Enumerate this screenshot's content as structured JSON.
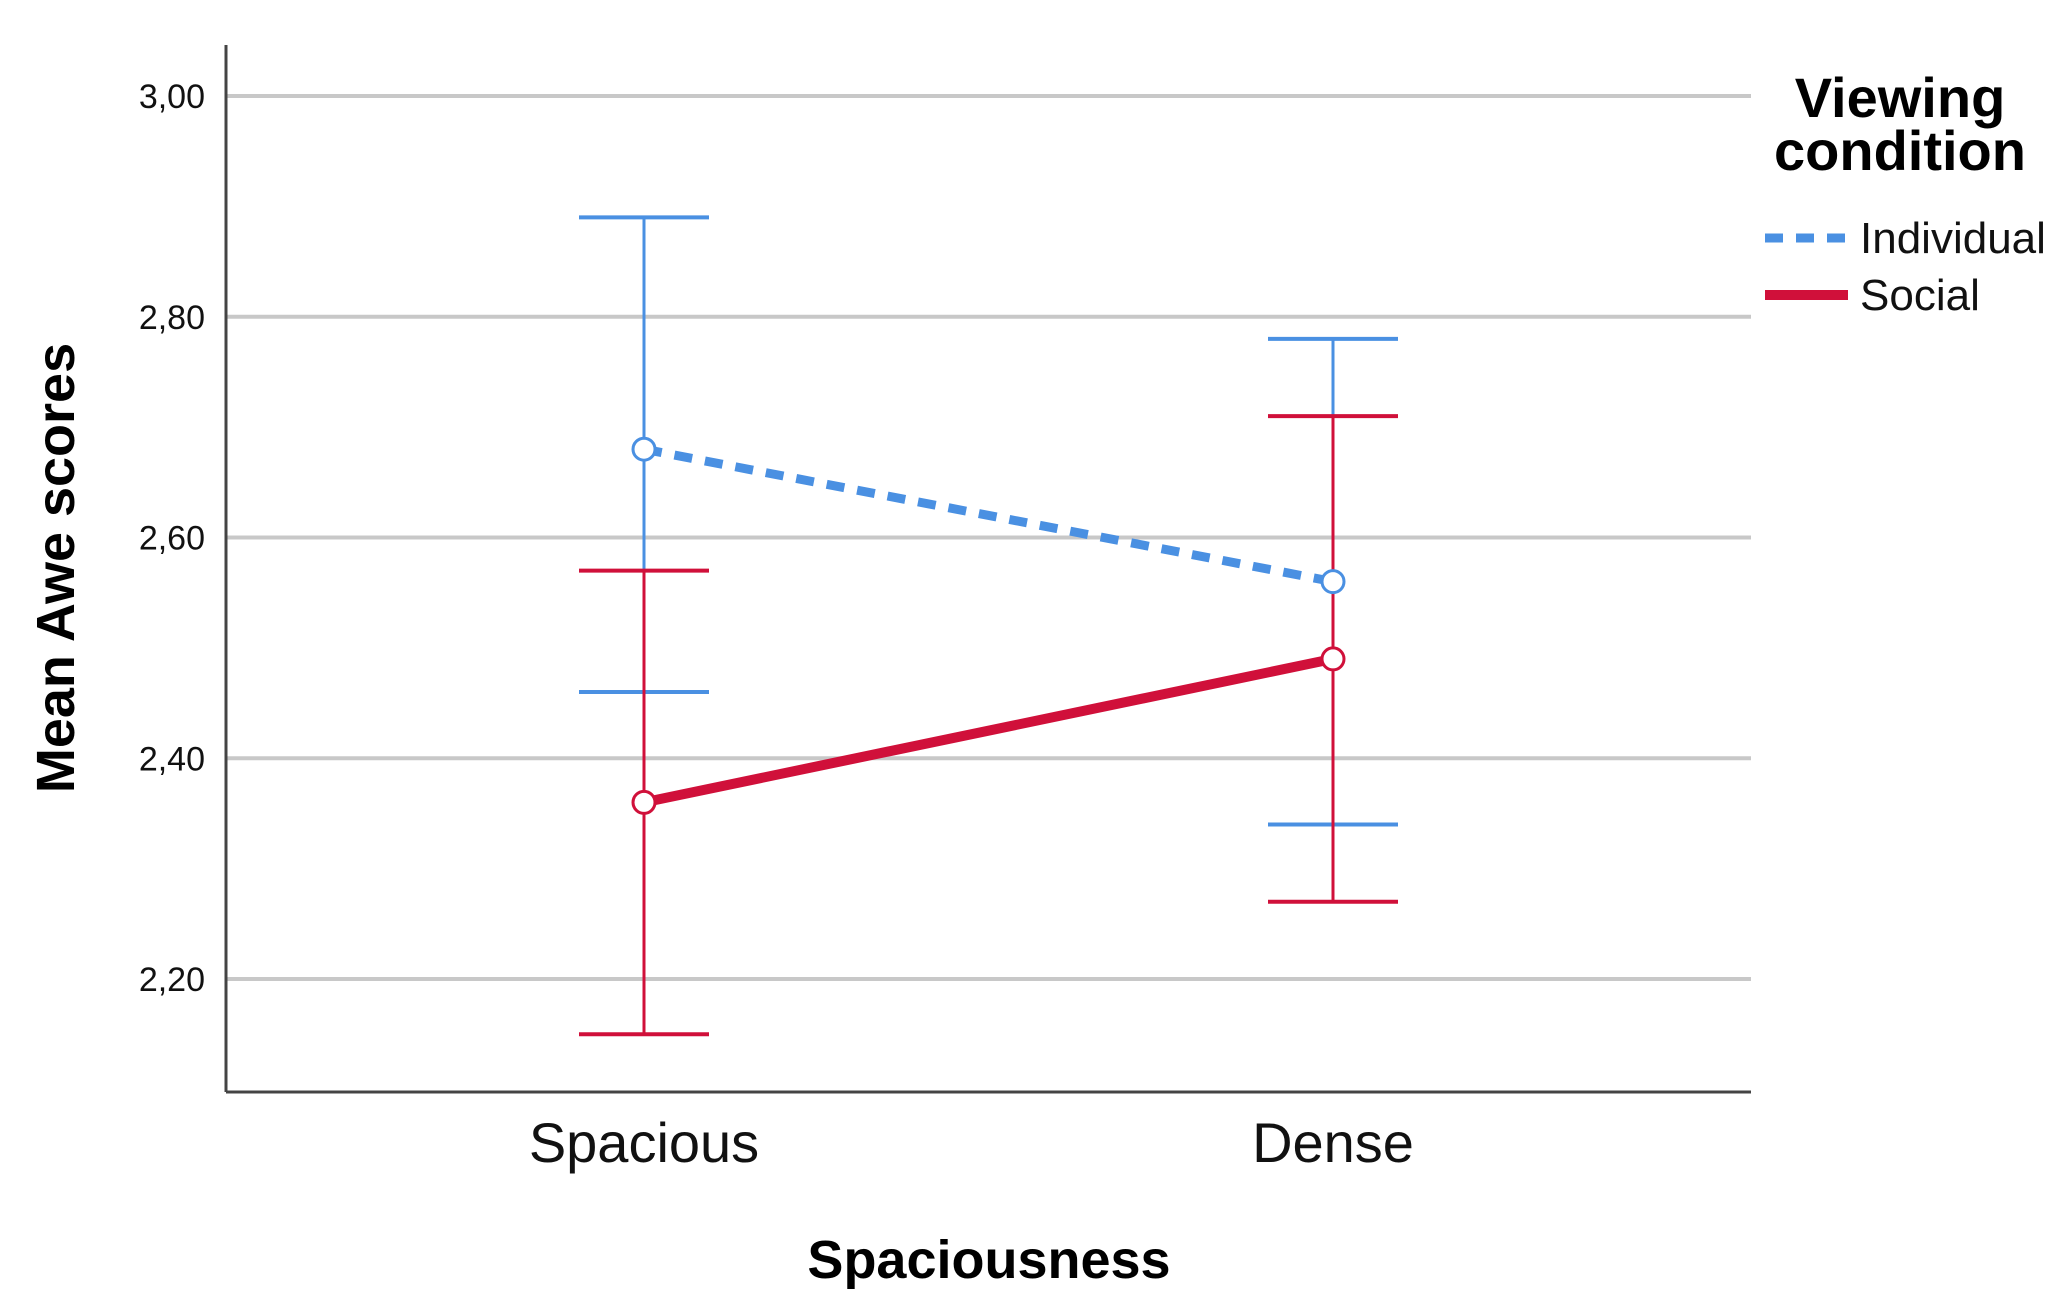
{
  "chart_data": {
    "type": "line",
    "xlabel": "Spaciousness",
    "ylabel": "Mean Awe scores",
    "categories": [
      "Spacious",
      "Dense"
    ],
    "ylim": [
      2.1,
      3.05
    ],
    "yticks": [
      "2,20",
      "2,40",
      "2,60",
      "2,80",
      "3,00"
    ],
    "ytick_values": [
      2.2,
      2.4,
      2.6,
      2.8,
      3.0
    ],
    "grid": true,
    "legend": {
      "title_lines": [
        "Viewing",
        "condition"
      ],
      "placement": "right"
    },
    "series": [
      {
        "name": "Individual",
        "color": "#4a90e2",
        "style": "dashed",
        "values": [
          2.68,
          2.56
        ],
        "ci_low": [
          2.46,
          2.34
        ],
        "ci_high": [
          2.89,
          2.78
        ]
      },
      {
        "name": "Social",
        "color": "#d0103a",
        "style": "solid",
        "values": [
          2.36,
          2.49
        ],
        "ci_low": [
          2.15,
          2.27
        ],
        "ci_high": [
          2.57,
          2.71
        ]
      }
    ]
  }
}
